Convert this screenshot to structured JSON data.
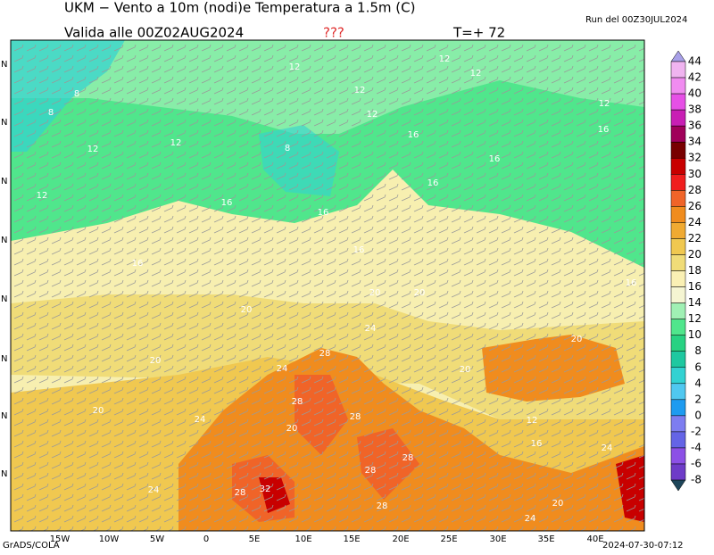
{
  "header": {
    "title": "UKM − Vento a 10m (nodi)e Temperatura a 1.5m (C)",
    "valid": "Valida alle 00Z02AUG2024",
    "flag": "???",
    "step": "T=+ 72",
    "run": "Run del 00Z30JUL2024"
  },
  "map": {
    "lon_labels": [
      "15W",
      "10W",
      "5W",
      "0",
      "5E",
      "10E",
      "15E",
      "20E",
      "25E",
      "30E",
      "35E",
      "40E"
    ],
    "lat_labels": [
      "N",
      "N",
      "N",
      "N",
      "N",
      "N",
      "N",
      "N"
    ],
    "contour_labels": [
      12,
      12,
      12,
      12,
      8,
      8,
      12,
      12,
      16,
      16,
      12,
      12,
      8,
      16,
      16,
      12,
      16,
      16,
      16,
      16,
      20,
      20,
      16,
      24,
      20,
      20,
      20,
      28,
      24,
      20,
      28,
      28,
      20,
      24,
      28,
      28,
      32,
      28,
      24,
      28,
      20,
      24,
      24,
      16,
      12,
      20
    ]
  },
  "colorbar": {
    "levels": [
      44,
      42,
      40,
      38,
      36,
      34,
      32,
      30,
      28,
      26,
      24,
      22,
      20,
      18,
      16,
      14,
      12,
      10,
      8,
      6,
      4,
      2,
      0,
      -2,
      -4,
      -6,
      -8
    ],
    "colors": [
      "#a8a0e8",
      "#f0b4f0",
      "#f08cf0",
      "#e650e6",
      "#c81eb4",
      "#a0005a",
      "#780000",
      "#c80000",
      "#f01e1e",
      "#f06428",
      "#f08c1e",
      "#f0aa32",
      "#f0c850",
      "#f0dc78",
      "#faf0b4",
      "#f5f5d2",
      "#a0f0b4",
      "#50e68c",
      "#28d282",
      "#1ec8a0",
      "#32d2d2",
      "#50c8f0",
      "#1e9bf0",
      "#7d7df0",
      "#6464e6",
      "#8c50e6",
      "#6e3cc8",
      "#1e465a"
    ]
  },
  "footer": {
    "left": "GrADS/COLA",
    "right": "2024-07-30-07:12"
  }
}
